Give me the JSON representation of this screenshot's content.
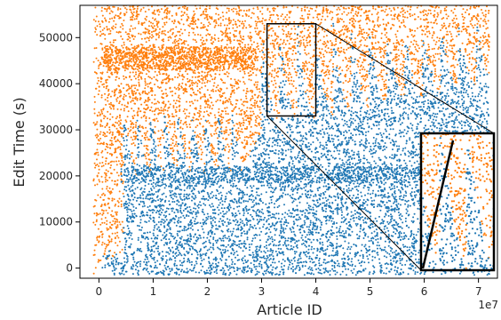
{
  "chart_data": {
    "type": "scatter",
    "xlabel": "Article ID",
    "ylabel": "Edit Time (s)",
    "x_offset_label": "1e7",
    "xlim": [
      -0.35,
      7.35
    ],
    "ylim": [
      -2200,
      57000
    ],
    "x_ticks": [
      0,
      1,
      2,
      3,
      4,
      5,
      6,
      7
    ],
    "y_ticks": [
      0,
      10000,
      20000,
      30000,
      40000,
      50000
    ],
    "grid": false,
    "legend": "none",
    "colors": {
      "series_a": "#1f77b4",
      "series_b": "#ff7f0e"
    },
    "series": [
      {
        "color_key": "series_b",
        "values": []
      },
      {
        "color_key": "series_a",
        "values": []
      }
    ],
    "zoom_region": {
      "x": [
        3.1,
        4.0
      ],
      "y": [
        33000,
        53000
      ]
    }
  }
}
